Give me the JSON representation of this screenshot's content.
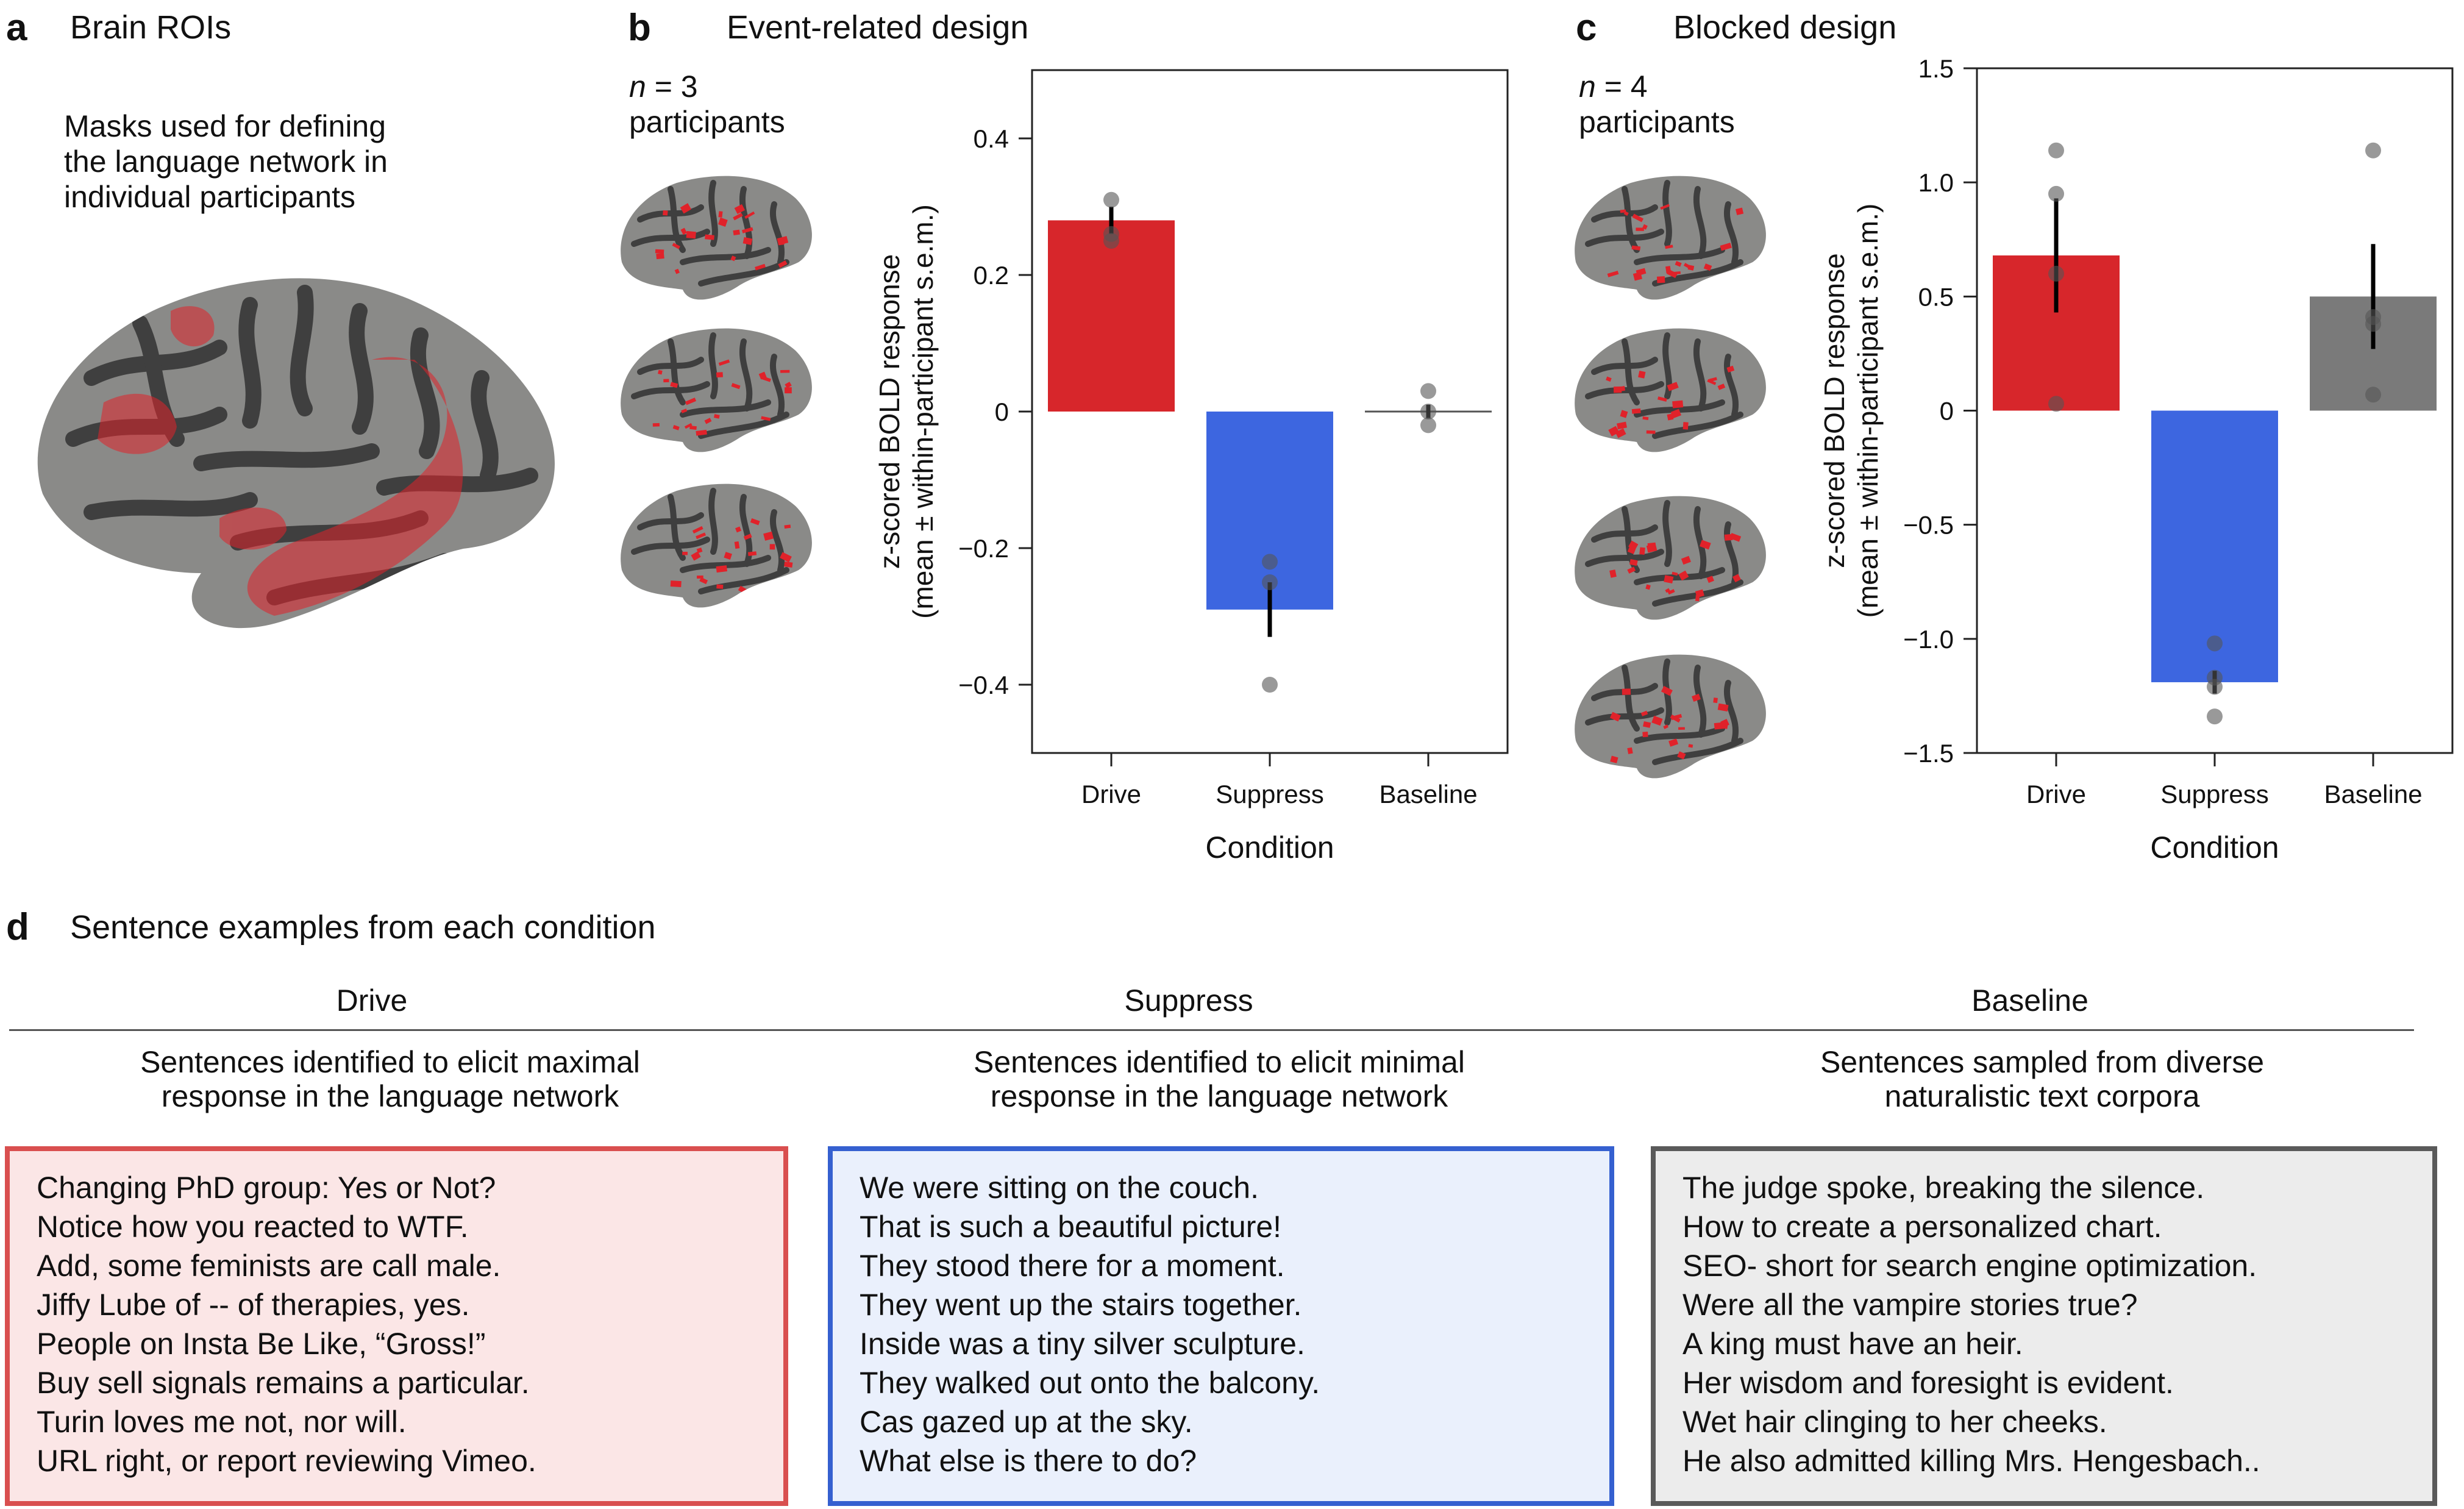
{
  "panel_a": {
    "letter": "a",
    "title": "Brain ROIs",
    "description_lines": [
      "Masks used for defining",
      "the language network in",
      "individual participants"
    ]
  },
  "panel_b": {
    "letter": "b",
    "title": "Event-related design",
    "n_label": "n",
    "n_value": "= 3",
    "participants_label": "participants"
  },
  "panel_c": {
    "letter": "c",
    "title": "Blocked design",
    "n_label": "n",
    "n_value": "= 4",
    "participants_label": "participants"
  },
  "panel_d": {
    "letter": "d",
    "title": "Sentence examples from each condition",
    "columns": [
      {
        "title": "Drive",
        "description_lines": [
          "Sentences identified to elicit maximal",
          "response in the language network"
        ],
        "examples": [
          "Changing PhD group: Yes or Not?",
          "Notice how you reacted to WTF.",
          "Add, some feminists are call male.",
          "Jiffy Lube of -- of therapies, yes.",
          "People on Insta Be Like, “Gross!”",
          "Buy sell signals remains a particular.",
          "Turin loves me not, nor will.",
          "URL right, or report reviewing Vimeo."
        ]
      },
      {
        "title": "Suppress",
        "description_lines": [
          "Sentences identified to elicit minimal",
          "response in the language network"
        ],
        "examples": [
          "We were sitting on the couch.",
          "That is such a beautiful picture!",
          "They stood there for a moment.",
          "They went up the stairs together.",
          "Inside was a tiny silver sculpture.",
          "They walked out onto the balcony.",
          "Cas gazed up at the sky.",
          "What else is there to do?"
        ]
      },
      {
        "title": "Baseline",
        "description_lines": [
          "Sentences sampled from diverse",
          "naturalistic text corpora"
        ],
        "examples": [
          "The judge spoke, breaking the silence.",
          "How to create a personalized chart.",
          "SEO- short for search engine optimization.",
          "Were all the vampire stories true?",
          "A king must have an heir.",
          "Her wisdom and foresight is evident.",
          "Wet hair clinging to her cheeks.",
          "He also admitted killing Mrs. Hengesbach.."
        ]
      }
    ]
  },
  "colors": {
    "drive": "#d7262b",
    "suppress": "#3d66e0",
    "baseline": "#7a7a7a",
    "drive_box_border": "#d94f4f",
    "drive_box_bg": "#fbe6e6",
    "suppress_box_border": "#3560d0",
    "suppress_box_bg": "#eaf0fc",
    "baseline_box_border": "#5a5a5a",
    "baseline_box_bg": "#ececec",
    "brain_gyri": "#8a8a88",
    "brain_sulci": "#3f3f3f",
    "roi_red": "#e0222a"
  },
  "chart_data": [
    {
      "type": "bar",
      "categories": [
        "Drive",
        "Suppress",
        "Baseline"
      ],
      "values": [
        0.28,
        -0.29,
        0.0
      ],
      "sem": [
        0.02,
        0.04,
        0.01
      ],
      "points": [
        [
          0.31,
          0.26,
          0.25
        ],
        [
          -0.22,
          -0.25,
          -0.4
        ],
        [
          0.03,
          0.0,
          -0.02
        ]
      ],
      "xlabel": "Condition",
      "ylabel_lines": [
        "z-scored BOLD response",
        "(mean ± within-participant s.e.m.)"
      ],
      "ylim": [
        -0.5,
        0.5
      ],
      "yticks": [
        0.4,
        0.2,
        0,
        -0.2,
        -0.4
      ],
      "ytick_labels": [
        "0.4",
        "0.2",
        "0",
        "−0.2",
        "−0.4"
      ],
      "grid": false
    },
    {
      "type": "bar",
      "categories": [
        "Drive",
        "Suppress",
        "Baseline"
      ],
      "values": [
        0.68,
        -1.19,
        0.5
      ],
      "sem": [
        0.25,
        0.05,
        0.23
      ],
      "points": [
        [
          1.14,
          0.95,
          0.6,
          0.03
        ],
        [
          -1.02,
          -1.21,
          -1.34,
          -1.17
        ],
        [
          1.14,
          0.41,
          0.38,
          0.07
        ]
      ],
      "xlabel": "Condition",
      "ylabel_lines": [
        "z-scored BOLD response",
        "(mean ± within-participant s.e.m.)"
      ],
      "ylim": [
        -1.5,
        1.5
      ],
      "yticks": [
        1.5,
        1.0,
        0.5,
        0,
        -0.5,
        -1.0,
        -1.5
      ],
      "ytick_labels": [
        "1.5",
        "1.0",
        "0.5",
        "0",
        "−0.5",
        "−1.0",
        "−1.5"
      ],
      "grid": false
    }
  ]
}
